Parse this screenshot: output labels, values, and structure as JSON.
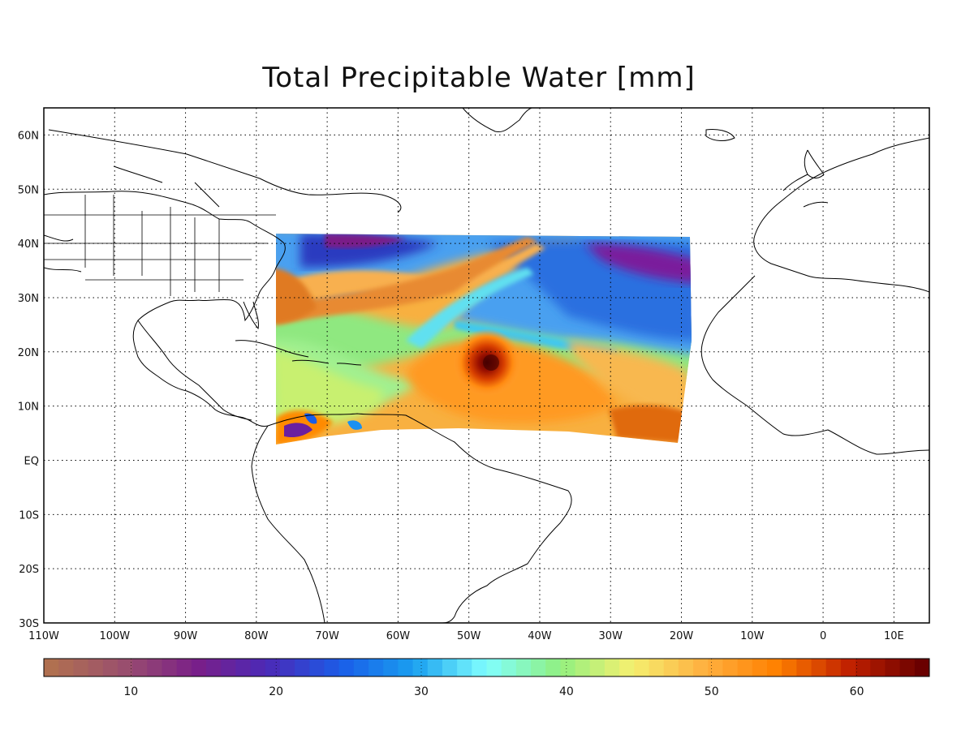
{
  "title": "Total Precipitable Water [mm]",
  "map": {
    "lat_ticks": [
      "60N",
      "50N",
      "40N",
      "30N",
      "20N",
      "10N",
      "EQ",
      "10S",
      "20S",
      "30S"
    ],
    "lon_ticks": [
      "110W",
      "100W",
      "90W",
      "80W",
      "70W",
      "60W",
      "50W",
      "40W",
      "30W",
      "20W",
      "10W",
      "0",
      "10E"
    ],
    "lon_range": [
      -110,
      15
    ],
    "lat_range": [
      -30,
      65
    ],
    "grid": "dotted",
    "data_region": {
      "lon": [
        -77,
        -18
      ],
      "lat": [
        4,
        42
      ]
    },
    "hurricane_center": {
      "lon": -47,
      "lat": 18
    }
  },
  "colorbar": {
    "ticks": [
      "10",
      "20",
      "30",
      "40",
      "50",
      "60"
    ],
    "range": [
      4,
      65
    ],
    "colors": [
      "#b07050",
      "#9a4f6e",
      "#7a1f88",
      "#4a2ab8",
      "#1a5de8",
      "#1aa0f0",
      "#80ffff",
      "#90f080",
      "#f5f070",
      "#ffb040",
      "#ff8000",
      "#c02000",
      "#6a0000"
    ]
  },
  "colors": {
    "coastline": "#000000",
    "grid": "#000000"
  }
}
